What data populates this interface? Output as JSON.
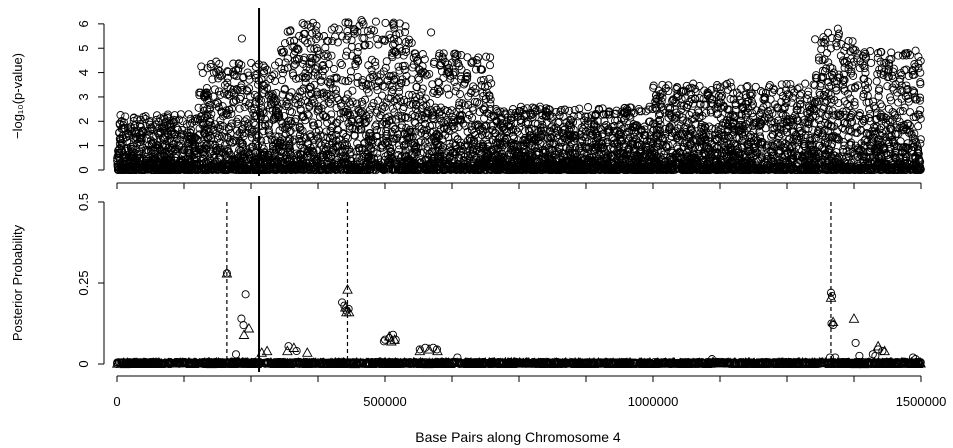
{
  "chart_data": [
    {
      "type": "scatter",
      "ylabel": "−log₁₀(p-value)",
      "ylim": [
        0,
        6.2
      ],
      "xlim": [
        0,
        1500000
      ],
      "y_ticks": [
        "0",
        "1",
        "2",
        "3",
        "4",
        "5",
        "6"
      ],
      "vertical_line": {
        "x": 265000,
        "style": "solid"
      },
      "series": [
        {
          "marker": "circle",
          "density_bands": [
            {
              "x_range": [
                0,
                150000
              ],
              "y_max": 2.3
            },
            {
              "x_range": [
                150000,
                300000
              ],
              "y_max": 4.4
            },
            {
              "x_range": [
                300000,
                550000
              ],
              "y_max": 6.1
            },
            {
              "x_range": [
                550000,
                700000
              ],
              "y_max": 4.8
            },
            {
              "x_range": [
                700000,
                1000000
              ],
              "y_max": 2.6
            },
            {
              "x_range": [
                1000000,
                1300000
              ],
              "y_max": 3.6
            },
            {
              "x_range": [
                1300000,
                1380000
              ],
              "y_max": 5.8
            },
            {
              "x_range": [
                1380000,
                1500000
              ],
              "y_max": 4.9
            }
          ],
          "highlights": [
            [
              456000,
              6.15
            ],
            [
              458000,
              6.08
            ],
            [
              515000,
              6.0
            ],
            [
              517000,
              5.85
            ],
            [
              233000,
              5.4
            ],
            [
              586000,
              5.65
            ],
            [
              1345000,
              5.8
            ],
            [
              1347000,
              5.6
            ],
            [
              1346000,
              5.5
            ],
            [
              1322000,
              5.35
            ],
            [
              1365000,
              5.3
            ],
            [
              1360000,
              5.05
            ],
            [
              1490000,
              4.9
            ],
            [
              495000,
              5.35
            ],
            [
              500000,
              5.3
            ],
            [
              545000,
              5.35
            ],
            [
              607000,
              4.65
            ],
            [
              608000,
              4.58
            ],
            [
              222000,
              4.1
            ],
            [
              185000,
              4.45
            ],
            [
              1425000,
              3.95
            ],
            [
              1430000,
              3.9
            ],
            [
              1375000,
              4.45
            ]
          ]
        }
      ]
    },
    {
      "type": "scatter",
      "xlabel": "Base Pairs along Chromosome 4",
      "ylabel": "Posterior Probability",
      "ylim": [
        0,
        0.5
      ],
      "xlim": [
        0,
        1500000
      ],
      "y_ticks": [
        "0",
        "0.25",
        "0.5"
      ],
      "x_ticks": [
        "0",
        "500000",
        "1000000",
        "1500000"
      ],
      "vertical_line": {
        "x": 265000,
        "style": "solid"
      },
      "dashed_lines": [
        {
          "x": 205000,
          "y_top": 0.5
        },
        {
          "x": 430000,
          "y_top": 0.5
        },
        {
          "x": 1332000,
          "y_top": 0.5
        }
      ],
      "series": [
        {
          "marker": "circle",
          "points": [
            [
              205000,
              0.28
            ],
            [
              240000,
              0.215
            ],
            [
              232000,
              0.14
            ],
            [
              236000,
              0.12
            ],
            [
              222000,
              0.03
            ],
            [
              420000,
              0.19
            ],
            [
              424000,
              0.18
            ],
            [
              428000,
              0.165
            ],
            [
              432000,
              0.17
            ],
            [
              1332000,
              0.22
            ],
            [
              1334000,
              0.21
            ],
            [
              1333000,
              0.125
            ],
            [
              1336000,
              0.12
            ],
            [
              1330000,
              0.02
            ],
            [
              500000,
              0.075
            ],
            [
              508000,
              0.08
            ],
            [
              515000,
              0.09
            ],
            [
              520000,
              0.075
            ],
            [
              498000,
              0.07
            ],
            [
              565000,
              0.045
            ],
            [
              575000,
              0.05
            ],
            [
              590000,
              0.05
            ],
            [
              597000,
              0.045
            ],
            [
              635000,
              0.02
            ],
            [
              1410000,
              0.03
            ],
            [
              1415000,
              0.025
            ],
            [
              1420000,
              0.045
            ],
            [
              1428000,
              0.04
            ],
            [
              1110000,
              0.015
            ],
            [
              1378000,
              0.065
            ],
            [
              320000,
              0.055
            ],
            [
              335000,
              0.04
            ],
            [
              1485000,
              0.02
            ],
            [
              1490000,
              0.015
            ],
            [
              1340000,
              0.02
            ],
            [
              1385000,
              0.025
            ]
          ]
        },
        {
          "marker": "triangle",
          "points": [
            [
              205000,
              0.28
            ],
            [
              246000,
              0.11
            ],
            [
              237000,
              0.09
            ],
            [
              430000,
              0.23
            ],
            [
              426000,
              0.175
            ],
            [
              433000,
              0.16
            ],
            [
              428000,
              0.16
            ],
            [
              1332000,
              0.205
            ],
            [
              1336000,
              0.13
            ],
            [
              1375000,
              0.14
            ],
            [
              508000,
              0.085
            ],
            [
              512000,
              0.07
            ],
            [
              518000,
              0.075
            ],
            [
              565000,
              0.04
            ],
            [
              582000,
              0.045
            ],
            [
              598000,
              0.04
            ],
            [
              270000,
              0.035
            ],
            [
              280000,
              0.04
            ],
            [
              318000,
              0.04
            ],
            [
              330000,
              0.05
            ],
            [
              355000,
              0.035
            ],
            [
              1420000,
              0.055
            ],
            [
              1432000,
              0.04
            ]
          ]
        }
      ]
    }
  ]
}
